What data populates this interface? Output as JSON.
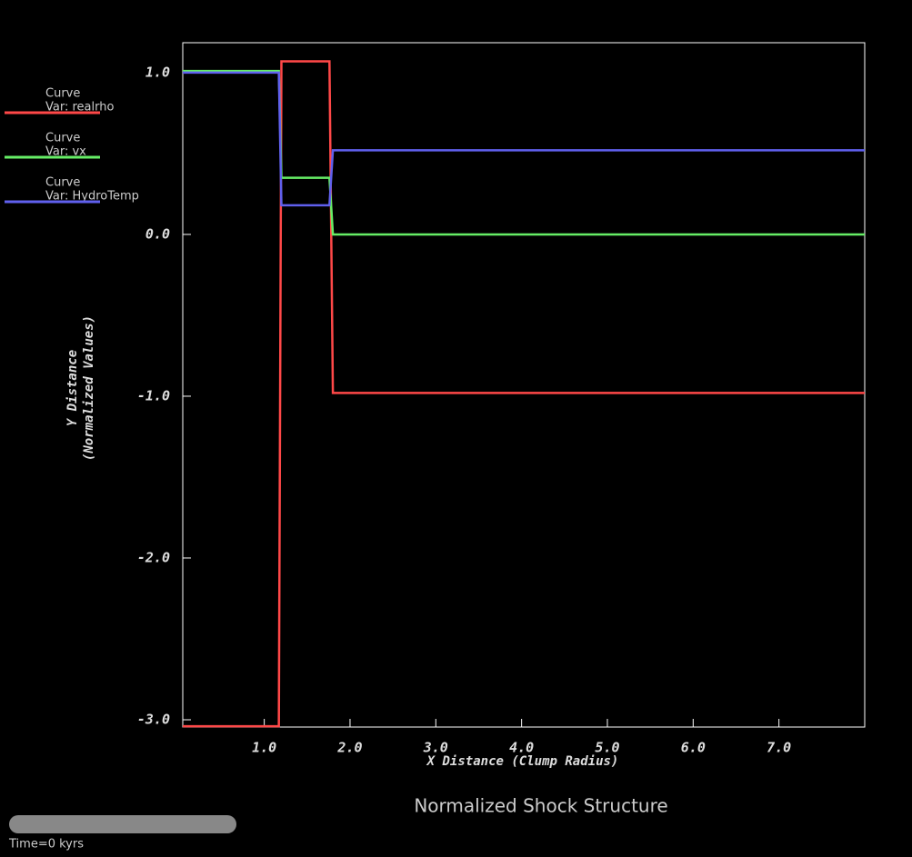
{
  "chart_data": {
    "type": "line",
    "title": "Normalized Shock Structure",
    "x_label": "X Distance (Clump Radius)",
    "y_label": [
      "Y Distance",
      "(Normalized Values)"
    ],
    "time_label": "Time=0 kyrs",
    "legend_prefix": "Curve",
    "x": [
      0.05,
      1.17,
      1.2,
      1.76,
      1.8,
      8.0
    ],
    "series": [
      {
        "name": "Var: realrho",
        "color": "#ff4848",
        "values": [
          -3.04,
          -3.04,
          1.07,
          1.07,
          -0.98,
          -0.98
        ]
      },
      {
        "name": "Var: vx",
        "color": "#66ee66",
        "values": [
          1.01,
          1.01,
          0.35,
          0.35,
          0.0,
          0.0
        ]
      },
      {
        "name": "Var: HydroTemp",
        "color": "#6060ee",
        "values": [
          1.0,
          1.0,
          0.18,
          0.18,
          0.52,
          0.52
        ]
      }
    ],
    "xlim": [
      0.05,
      8.0
    ],
    "ylim": [
      -3.045,
      1.185
    ],
    "xticks": [
      {
        "value": 1,
        "label": "1.0"
      },
      {
        "value": 2,
        "label": "2.0"
      },
      {
        "value": 3,
        "label": "3.0"
      },
      {
        "value": 4,
        "label": "4.0"
      },
      {
        "value": 5,
        "label": "5.0"
      },
      {
        "value": 6,
        "label": "6.0"
      },
      {
        "value": 7,
        "label": "7.0"
      }
    ],
    "yticks": [
      {
        "value": -3,
        "label": "-3.0"
      },
      {
        "value": -2,
        "label": "-2.0"
      },
      {
        "value": -1,
        "label": "-1.0"
      },
      {
        "value": 0,
        "label": "0.0"
      },
      {
        "value": 1,
        "label": "1.0"
      }
    ]
  }
}
